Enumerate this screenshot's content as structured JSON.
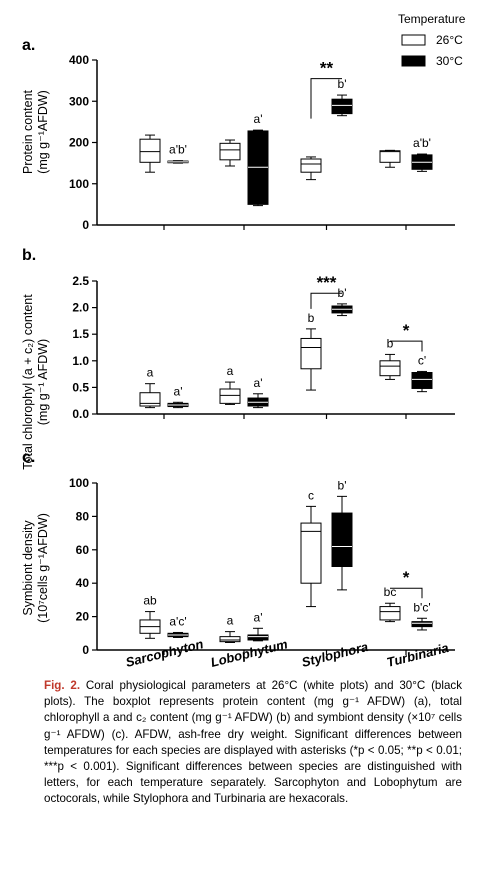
{
  "legend": {
    "title": "Temperature",
    "items": [
      {
        "label": "26°C",
        "fill": "#ffffff"
      },
      {
        "label": "30°C",
        "fill": "#000000"
      }
    ]
  },
  "species": [
    "Sarcophyton",
    "Lobophytum",
    "Stylophora",
    "Turbinaria"
  ],
  "colors": {
    "t26": "#ffffff",
    "t30": "#000000",
    "stroke": "#000000",
    "figlabel": "#c0392b"
  },
  "chart_data": [
    {
      "type": "box",
      "panel": "a.",
      "ylabel": [
        "Protein content",
        "(mg g⁻¹AFDW)"
      ],
      "ylim": [
        0,
        400
      ],
      "yticks": [
        0,
        100,
        200,
        300,
        400
      ],
      "groups": [
        {
          "species": "Sarcophyton",
          "t26": {
            "min": 128,
            "q1": 152,
            "median": 178,
            "q3": 208,
            "max": 218,
            "label": ""
          },
          "t30": {
            "min": 150,
            "q1": 151,
            "median": 153,
            "q3": 155,
            "max": 156,
            "label": "a'b'"
          }
        },
        {
          "species": "Lobophytum",
          "t26": {
            "min": 143,
            "q1": 158,
            "median": 182,
            "q3": 198,
            "max": 206,
            "label": ""
          },
          "t30": {
            "min": 47,
            "q1": 50,
            "median": 140,
            "q3": 228,
            "max": 230,
            "label": "a'"
          }
        },
        {
          "species": "Stylophora",
          "t26": {
            "min": 110,
            "q1": 128,
            "median": 148,
            "q3": 160,
            "max": 165,
            "label": ""
          },
          "t30": {
            "min": 265,
            "q1": 270,
            "median": 290,
            "q3": 305,
            "max": 315,
            "label": "b'"
          }
        },
        {
          "species": "Turbinaria",
          "t26": {
            "min": 140,
            "q1": 152,
            "median": 178,
            "q3": 180,
            "max": 181,
            "label": ""
          },
          "t30": {
            "min": 130,
            "q1": 135,
            "median": 152,
            "q3": 170,
            "max": 172,
            "label": "a'b'"
          }
        }
      ],
      "significance": [
        {
          "species": "Stylophora",
          "stars": "**",
          "y": 355
        }
      ]
    },
    {
      "type": "box",
      "panel": "b.",
      "ylabel": [
        "Total chlorophyl (a + c₂) content",
        "(mg g⁻¹ AFDW)"
      ],
      "ylim": [
        0,
        2.5
      ],
      "yticks": [
        "0.0",
        "0.5",
        "1.0",
        "1.5",
        "2.0",
        "2.5"
      ],
      "groups": [
        {
          "species": "Sarcophyton",
          "t26": {
            "min": 0.12,
            "q1": 0.15,
            "median": 0.2,
            "q3": 0.4,
            "max": 0.57,
            "label": "a"
          },
          "t30": {
            "min": 0.12,
            "q1": 0.14,
            "median": 0.17,
            "q3": 0.2,
            "max": 0.22,
            "label": "a'"
          }
        },
        {
          "species": "Lobophytum",
          "t26": {
            "min": 0.18,
            "q1": 0.2,
            "median": 0.35,
            "q3": 0.47,
            "max": 0.6,
            "label": "a"
          },
          "t30": {
            "min": 0.12,
            "q1": 0.15,
            "median": 0.22,
            "q3": 0.3,
            "max": 0.38,
            "label": "a'"
          }
        },
        {
          "species": "Stylophora",
          "t26": {
            "min": 0.45,
            "q1": 0.85,
            "median": 1.25,
            "q3": 1.42,
            "max": 1.6,
            "label": "b"
          },
          "t30": {
            "min": 1.85,
            "q1": 1.9,
            "median": 1.97,
            "q3": 2.03,
            "max": 2.07,
            "label": "b'"
          }
        },
        {
          "species": "Turbinaria",
          "t26": {
            "min": 0.65,
            "q1": 0.72,
            "median": 0.9,
            "q3": 1.0,
            "max": 1.12,
            "label": "b"
          },
          "t30": {
            "min": 0.42,
            "q1": 0.48,
            "median": 0.65,
            "q3": 0.78,
            "max": 0.8,
            "label": "c'"
          }
        }
      ],
      "significance": [
        {
          "species": "Stylophora",
          "stars": "***",
          "y": 2.27
        },
        {
          "species": "Turbinaria",
          "stars": "*",
          "y": 1.37
        }
      ]
    },
    {
      "type": "box",
      "panel": "c.",
      "ylabel": [
        "Symbiont density",
        "(10⁷cells g⁻¹AFDW)"
      ],
      "ylim": [
        0,
        100
      ],
      "yticks": [
        0,
        20,
        40,
        60,
        80,
        100
      ],
      "groups": [
        {
          "species": "Sarcophyton",
          "t26": {
            "min": 7,
            "q1": 10,
            "median": 14,
            "q3": 18,
            "max": 23,
            "label": "ab"
          },
          "t30": {
            "min": 7.5,
            "q1": 8,
            "median": 9,
            "q3": 10,
            "max": 10.5,
            "label": "a'c'"
          }
        },
        {
          "species": "Lobophytum",
          "t26": {
            "min": 4.5,
            "q1": 5,
            "median": 6,
            "q3": 8,
            "max": 11,
            "label": "a"
          },
          "t30": {
            "min": 5.5,
            "q1": 6,
            "median": 8,
            "q3": 9,
            "max": 13,
            "label": "a'"
          }
        },
        {
          "species": "Stylophora",
          "t26": {
            "min": 26,
            "q1": 40,
            "median": 71,
            "q3": 76,
            "max": 86,
            "label": "c"
          },
          "t30": {
            "min": 36,
            "q1": 50,
            "median": 62,
            "q3": 82,
            "max": 92,
            "label": "b'"
          }
        },
        {
          "species": "Turbinaria",
          "t26": {
            "min": 17,
            "q1": 18,
            "median": 23,
            "q3": 26,
            "max": 28,
            "label": "bc"
          },
          "t30": {
            "min": 12,
            "q1": 14,
            "median": 16,
            "q3": 17,
            "max": 19,
            "label": "b'c'"
          }
        }
      ],
      "significance": [
        {
          "species": "Turbinaria",
          "stars": "*",
          "y": 37
        }
      ]
    }
  ],
  "caption": {
    "fig_label": "Fig. 2.",
    "text": "Coral physiological parameters at 26°C (white plots) and 30°C (black plots). The boxplot represents protein content (mg g⁻¹ AFDW) (a), total chlorophyll a and c₂ content (mg g⁻¹ AFDW) (b) and symbiont density (×10⁷ cells g⁻¹ AFDW) (c). AFDW, ash-free dry weight. Significant differences between temperatures for each species are displayed with asterisks (*p < 0.05; **p < 0.01; ***p < 0.001). Significant differences between species are distinguished with letters, for each temperature separately. Sarcophyton and Lobophytum are octocorals, while Stylophora and Turbinaria are hexacorals."
  }
}
